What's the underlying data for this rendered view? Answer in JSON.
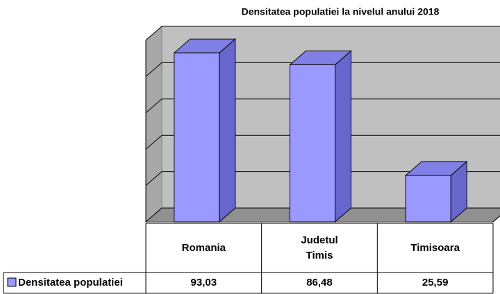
{
  "chart_data": {
    "type": "bar",
    "title": "Densitatea populatiei la nivelul anului 2018",
    "categories": [
      "Romania",
      "Judetul Timis",
      "Timisoara"
    ],
    "series": [
      {
        "name": "Densitatea populatiei",
        "color": "#9999ff",
        "values": [
          93.03,
          86.48,
          25.59
        ],
        "value_labels": [
          "93,03",
          "86,48",
          "25,59"
        ]
      }
    ],
    "ylim": [
      0,
      100
    ],
    "yticks": [
      0,
      20,
      40,
      60,
      80,
      100
    ],
    "grid": true
  }
}
